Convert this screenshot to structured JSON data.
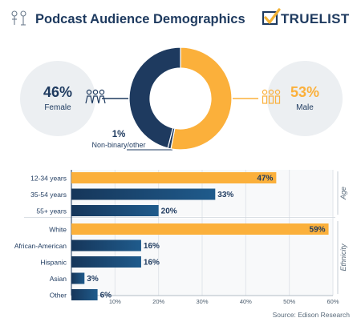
{
  "header": {
    "title": "Podcast Audience Demographics",
    "brand": "TRUELIST"
  },
  "colors": {
    "navy": "#1e3a5f",
    "orange": "#fbb03b",
    "circle_bg": "#e9ecef",
    "brand_check": "#f2b134"
  },
  "icons": {
    "header": "gender-icon",
    "female": "female-group-icon",
    "male": "male-group-icon",
    "brand": "checkmark-logo-icon"
  },
  "chart_data": [
    {
      "type": "pie",
      "donut": true,
      "slices": [
        {
          "label": "Male",
          "value": 53,
          "display": "53%",
          "color": "#fbb03b"
        },
        {
          "label": "Non-binary/other",
          "value": 1,
          "display": "1%",
          "color": "#1e3a5f"
        },
        {
          "label": "Female",
          "value": 46,
          "display": "46%",
          "color": "#1e3a5f"
        }
      ]
    },
    {
      "type": "bar",
      "orientation": "horizontal",
      "xlim": [
        0,
        60
      ],
      "xticks": [
        "10%",
        "20%",
        "30%",
        "40%",
        "50%",
        "60%"
      ],
      "xtick_values": [
        10,
        20,
        30,
        40,
        50,
        60
      ],
      "groups": [
        {
          "name": "Age",
          "bars": [
            {
              "label": "12-34 years",
              "value": 47,
              "display": "47%",
              "highlight": true
            },
            {
              "label": "35-54 years",
              "value": 33,
              "display": "33%",
              "highlight": false
            },
            {
              "label": "55+ years",
              "value": 20,
              "display": "20%",
              "highlight": false
            }
          ]
        },
        {
          "name": "Ethnicity",
          "bars": [
            {
              "label": "White",
              "value": 59,
              "display": "59%",
              "highlight": true
            },
            {
              "label": "African-American",
              "value": 16,
              "display": "16%",
              "highlight": false
            },
            {
              "label": "Hispanic",
              "value": 16,
              "display": "16%",
              "highlight": false
            },
            {
              "label": "Asian",
              "value": 3,
              "display": "3%",
              "highlight": false
            },
            {
              "label": "Other",
              "value": 6,
              "display": "6%",
              "highlight": false
            }
          ]
        }
      ],
      "source": "Source: Edison Research"
    }
  ]
}
